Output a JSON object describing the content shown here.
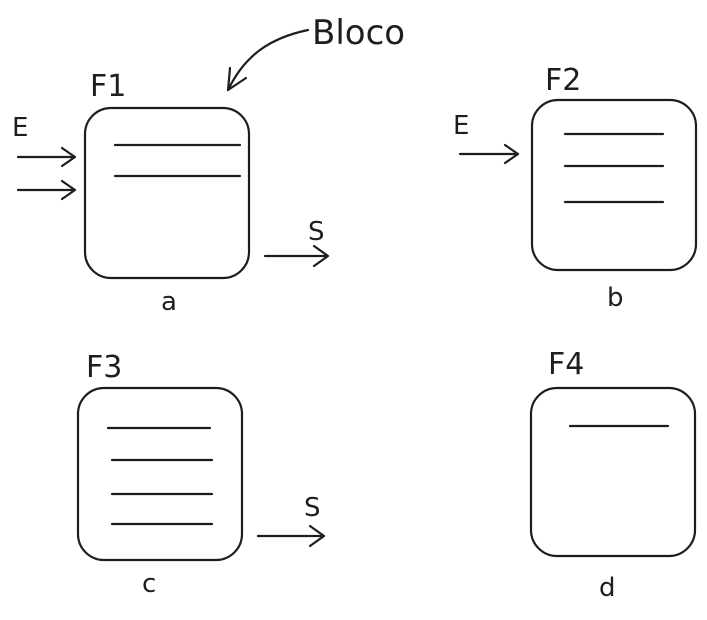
{
  "callout": {
    "text": "Bloco"
  },
  "diagrams": [
    {
      "id": "a",
      "title": "F1",
      "caption": "a",
      "lines": 2,
      "input_label": "E",
      "input_arrows": 2,
      "output_label": "S"
    },
    {
      "id": "b",
      "title": "F2",
      "caption": "b",
      "lines": 3,
      "input_label": "E",
      "input_arrows": 1,
      "output_label": ""
    },
    {
      "id": "c",
      "title": "F3",
      "caption": "c",
      "lines": 4,
      "input_label": "",
      "input_arrows": 0,
      "output_label": "S"
    },
    {
      "id": "d",
      "title": "F4",
      "caption": "d",
      "lines": 1,
      "input_label": "",
      "input_arrows": 0,
      "output_label": ""
    }
  ]
}
